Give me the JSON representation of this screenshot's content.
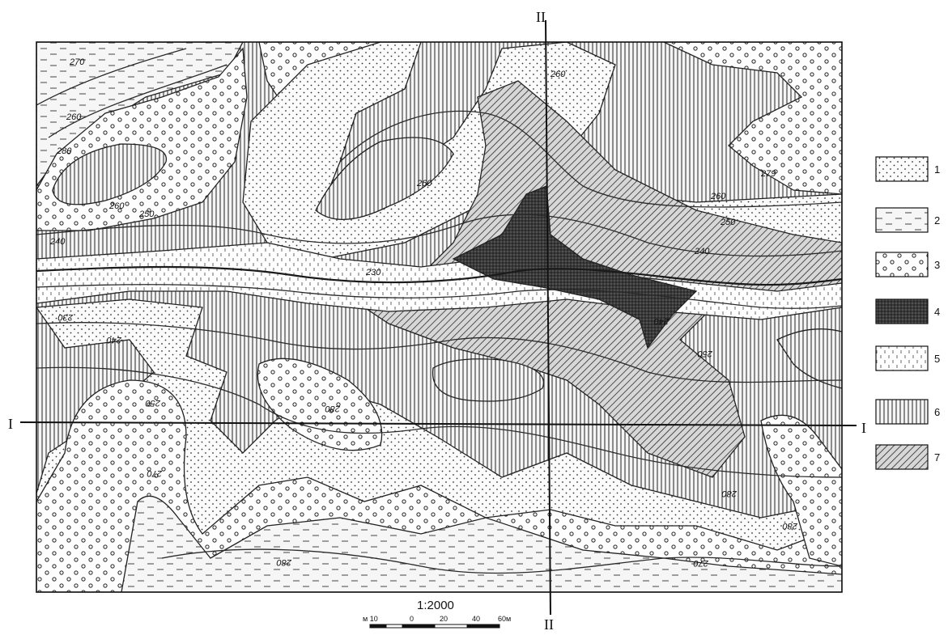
{
  "map": {
    "scale": "1:2000",
    "scale_bar_ticks": [
      "м 10",
      "0",
      "20",
      "40",
      "60м"
    ],
    "section_lines": {
      "horizontal": {
        "left_label": "I",
        "right_label": "I"
      },
      "vertical": {
        "top_label": "II",
        "bottom_label": "II"
      }
    },
    "contour_labels": [
      "270",
      "260",
      "280",
      "260",
      "250",
      "240",
      "260",
      "230",
      "260",
      "279",
      "260",
      "250",
      "240",
      "230",
      "240",
      "250",
      "240",
      "250",
      "280",
      "270",
      "280",
      "280",
      "270",
      "280"
    ],
    "legend": [
      {
        "label": "1"
      },
      {
        "label": "2"
      },
      {
        "label": "3"
      },
      {
        "label": "4"
      },
      {
        "label": "5"
      },
      {
        "label": "6"
      },
      {
        "label": "7"
      }
    ]
  }
}
